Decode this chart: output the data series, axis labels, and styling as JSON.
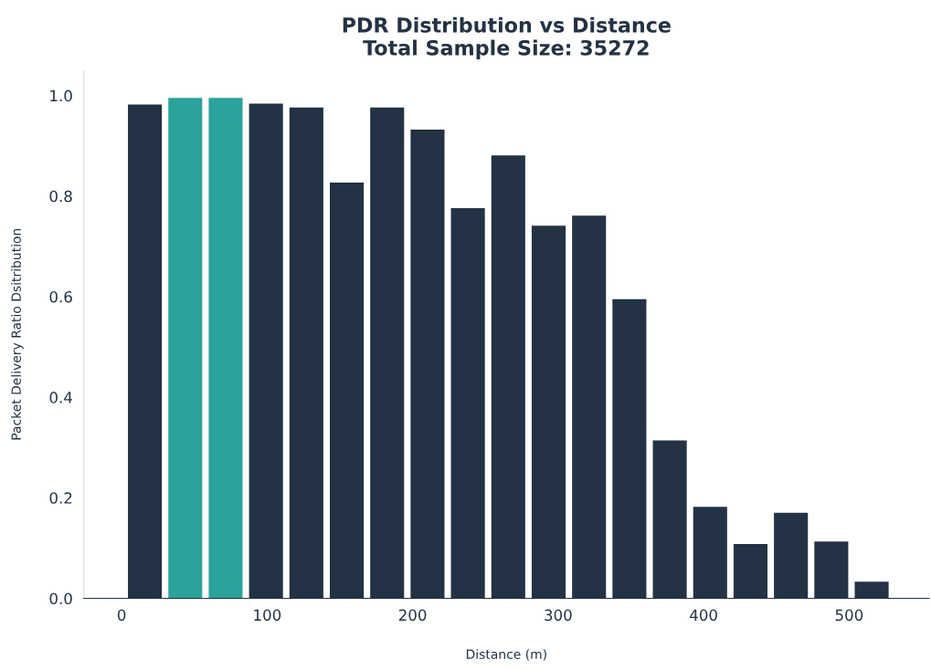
{
  "chart_data": {
    "type": "bar",
    "title": "PDR Distribution vs Distance\nTotal Sample Size: 35272",
    "xlabel": "Distance (m)",
    "ylabel": "Packet Delivery Ratio Dsitribution",
    "x": [
      16,
      43.75,
      71.5,
      99.25,
      127,
      154.75,
      182.5,
      210.25,
      238,
      265.75,
      293.5,
      321.25,
      349,
      376.75,
      404.5,
      432.25,
      460,
      487.75,
      515.5
    ],
    "values": [
      0.982,
      0.995,
      0.995,
      0.984,
      0.976,
      0.827,
      0.976,
      0.932,
      0.776,
      0.881,
      0.741,
      0.761,
      0.595,
      0.314,
      0.182,
      0.108,
      0.17,
      0.113,
      0.033
    ],
    "colors": [
      "#233244",
      "#2ba39a",
      "#2ba39a",
      "#233244",
      "#233244",
      "#233244",
      "#233244",
      "#233244",
      "#233244",
      "#233244",
      "#233244",
      "#233244",
      "#233244",
      "#233244",
      "#233244",
      "#233244",
      "#233244",
      "#233244",
      "#233244"
    ],
    "xlim": [
      -26,
      555
    ],
    "ylim": [
      0,
      1.05
    ],
    "xticks": [
      0,
      100,
      200,
      300,
      400,
      500
    ],
    "yticks": [
      {
        "value": 0,
        "label": "0.0"
      },
      {
        "value": 0.2,
        "label": "0.2"
      },
      {
        "value": 0.4,
        "label": "0.4"
      },
      {
        "value": 0.6,
        "label": "0.6"
      },
      {
        "value": 0.8,
        "label": "0.8"
      },
      {
        "value": 1.0,
        "label": "1.0"
      }
    ],
    "grid": false,
    "legend": false
  }
}
